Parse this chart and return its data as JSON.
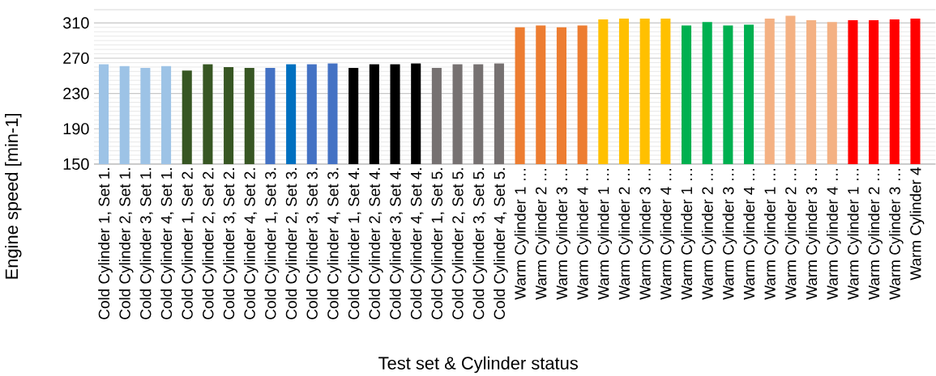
{
  "chart_data": {
    "type": "bar",
    "xlabel": "Test set & Cylinder status",
    "ylabel": "Engine speed [min-1]",
    "categories": [
      "Cold Cylinder 1, Set 1.",
      "Cold Cylinder 2, Set 1.",
      "Cold Cylinder 3, Set 1.",
      "Cold Cylinder 4, Set 1.",
      "Cold Cylinder 1, Set 2.",
      "Cold Cylinder 2, Set 2.",
      "Cold Cylinder 3, Set 2.",
      "Cold Cylinder 4, Set 2.",
      "Cold Cylinder 1, Set 3.",
      "Cold Cylinder 2, Set 3.",
      "Cold Cylinder 3, Set 3.",
      "Cold Cylinder 4, Set 3.",
      "Cold Cylinder 1, Set 4.",
      "Cold Cylinder 2, Set 4.",
      "Cold Cylinder 3, Set 4.",
      "Cold Cylinder 4, Set 4.",
      "Cold Cylinder 1, Set 5.",
      "Cold Cylinder 2, Set 5.",
      "Cold Cylinder 3, Set 5.",
      "Cold Cylinder 4, Set 5.",
      "Warm Cylinder 1 …",
      "Warm Cylinder 2 …",
      "Warm Cylinder 3 …",
      "Warm Cylinder 4 …",
      "Warm Cylinder 1 …",
      "Warm Cylinder 2 …",
      "Warm Cylinder 3 …",
      "Warm Cylinder 4 …",
      "Warm Cylinder 1 …",
      "Warm Cylinder 2 …",
      "Warm Cylinder 3 …",
      "Warm Cylinder 4 …",
      "Warm Cylinder 1 …",
      "Warm Cylinder 2 …",
      "Warm Cylinder 3 …",
      "Warm Cylinder 4 …",
      "Warm Cylinder 1 …",
      "Warm Cylinder 2 …",
      "Warm Cylinder 3 …",
      "Warm Cylinder 4"
    ],
    "values": [
      263,
      261,
      259,
      261,
      256,
      263,
      260,
      259,
      259,
      263,
      263,
      264,
      259,
      263,
      263,
      264,
      259,
      263,
      263,
      264,
      305,
      307,
      305,
      307,
      314,
      315,
      315,
      315,
      307,
      311,
      307,
      308,
      315,
      318,
      313,
      311,
      313,
      313,
      314,
      315
    ],
    "colors": [
      "#9dc3e6",
      "#9dc3e6",
      "#9dc3e6",
      "#9dc3e6",
      "#375623",
      "#375623",
      "#375623",
      "#375623",
      "#4472c4",
      "#0070c0",
      "#4472c4",
      "#4472c4",
      "#000000",
      "#000000",
      "#000000",
      "#000000",
      "#767171",
      "#767171",
      "#767171",
      "#767171",
      "#ed7d31",
      "#ed7d31",
      "#ed7d31",
      "#ed7d31",
      "#ffc000",
      "#ffc000",
      "#ffc000",
      "#ffc000",
      "#00b050",
      "#00b050",
      "#00b050",
      "#00b050",
      "#f4b183",
      "#f4b183",
      "#f4b183",
      "#f4b183",
      "#ff0000",
      "#ff0000",
      "#ff0000",
      "#ff0000"
    ],
    "ylim": [
      150,
      325
    ],
    "yticks": [
      150,
      190,
      230,
      270,
      310
    ],
    "grid": "y"
  }
}
